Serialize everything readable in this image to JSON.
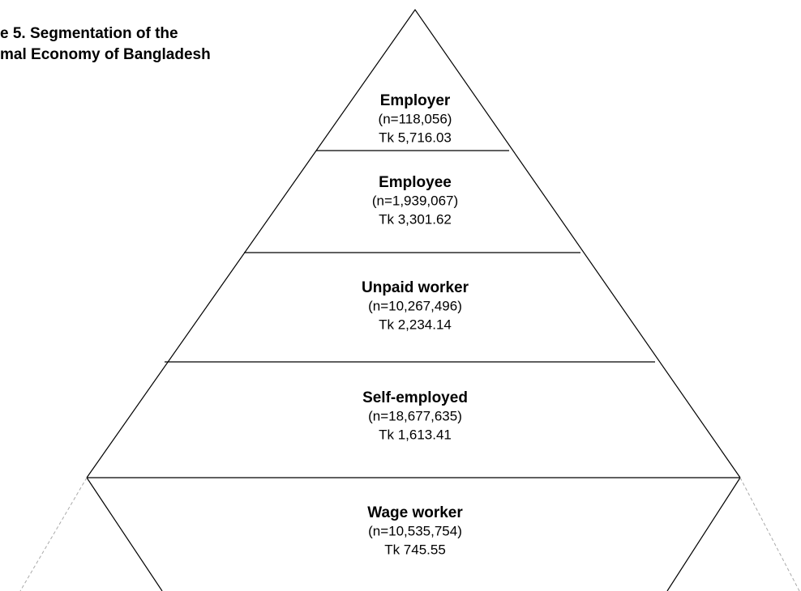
{
  "title_lines": [
    "e 5. Segmentation of the",
    "mal Economy of Bangladesh"
  ],
  "segments": [
    {
      "label": "Employer",
      "n": "(n=118,056)",
      "tk": "Tk 5,716.03"
    },
    {
      "label": "Employee",
      "n": "(n=1,939,067)",
      "tk": "Tk 3,301.62"
    },
    {
      "label": "Unpaid worker",
      "n": "(n=10,267,496)",
      "tk": "Tk 2,234.14"
    },
    {
      "label": "Self-employed",
      "n": "(n=18,677,635)",
      "tk": "Tk 1,613.41"
    },
    {
      "label": "Wage worker",
      "n": "(n=10,535,754)",
      "tk": "Tk 745.55"
    }
  ]
}
